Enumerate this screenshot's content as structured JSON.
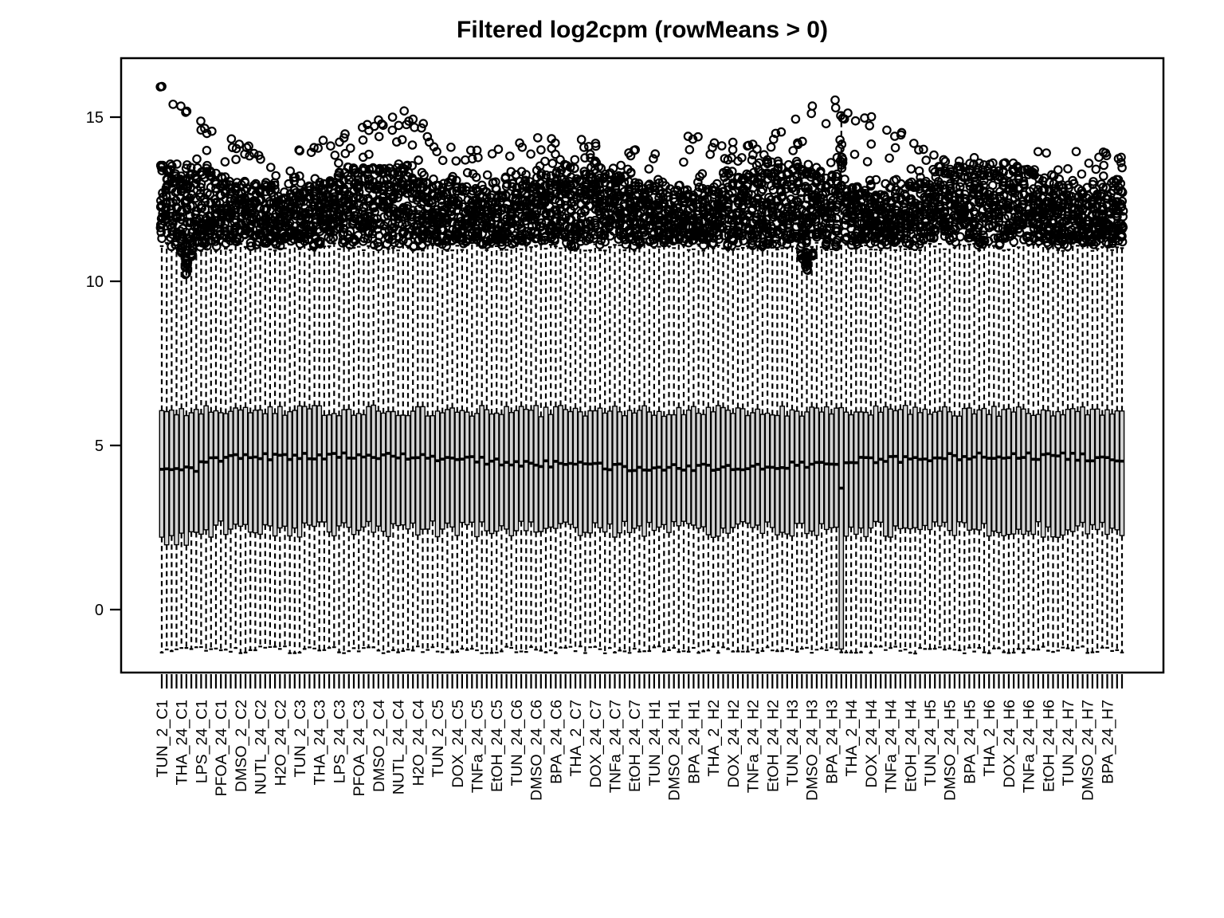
{
  "figure": {
    "background": "#ffffff",
    "frame_color": "#000000"
  },
  "chart_data": {
    "type": "boxplot",
    "title": "Filtered log2cpm (rowMeans > 0)",
    "xlabel": "",
    "ylabel": "",
    "ylim": [
      -1.95,
      16.8
    ],
    "yticks": [
      0,
      5,
      10,
      15
    ],
    "grid": false,
    "legend": "none",
    "n_boxes": 196,
    "ticks_per_label": 4,
    "x_tick_labels": [
      "TUN_2_C1",
      "THA_24_C1",
      "LPS_24_C1",
      "PFOA_24_C1",
      "DMSO_2_C2",
      "NUTL_24_C2",
      "H2O_24_C2",
      "TUN_2_C3",
      "THA_24_C3",
      "LPS_24_C3",
      "PFOA_24_C3",
      "DMSO_2_C4",
      "NUTL_24_C4",
      "H2O_24_C4",
      "TUN_2_C5",
      "DOX_24_C5",
      "TNFa_24_C5",
      "EtOH_24_C5",
      "TUN_24_C6",
      "DMSO_24_C6",
      "BPA_24_C6",
      "THA_2_C7",
      "DOX_24_C7",
      "TNFa_24_C7",
      "EtOH_24_C7",
      "TUN_24_H1",
      "DMSO_24_H1",
      "BPA_24_H1",
      "THA_2_H2",
      "DOX_24_H2",
      "TNFa_24_H2",
      "EtOH_24_H2",
      "TUN_24_H3",
      "DMSO_24_H3",
      "BPA_24_H3",
      "THA_2_H4",
      "DOX_24_H4",
      "TNFa_24_H4",
      "EtOH_24_H4",
      "TUN_24_H5",
      "DMSO_24_H5",
      "BPA_24_H5",
      "THA_2_H6",
      "DOX_24_H6",
      "TNFa_24_H6",
      "EtOH_24_H6",
      "TUN_24_H7",
      "DMSO_24_H7",
      "BPA_24_H7"
    ],
    "box_color": "#d3d3d3",
    "line_color": "#000000",
    "box_summary": {
      "q1_typical": 2.45,
      "median_typical": 4.5,
      "q3_typical": 6.05,
      "upper_whisker_typical": 11.05,
      "lower_whisker_typical": -1.12,
      "dense_outlier_band": [
        11.1,
        13.3
      ],
      "outlier_max": 16.1
    },
    "high_outlier_profile": [
      16.0,
      14.4,
      13.7,
      14.6,
      15.1,
      14.0,
      14.3,
      14.2,
      13.9,
      14.6,
      14.1,
      15.6,
      14.8,
      13.9,
      13.8,
      13.9
    ],
    "special_boxes": {
      "long_box": {
        "index": 138,
        "q1": -1.2,
        "median": 3.7,
        "q3": 6.15,
        "upper_whisker": 15.15,
        "lower_whisker": -1.3
      },
      "low_outlier_spikes": [
        {
          "index": 5,
          "min": 10.15
        },
        {
          "index": 131,
          "min": 10.3
        }
      ]
    },
    "render_seed": 11
  }
}
